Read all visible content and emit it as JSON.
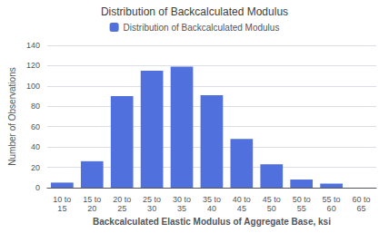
{
  "chart_data": {
    "type": "bar",
    "title": "Distribution of Backcalculated Modulus",
    "xlabel": "Backcalculated Elastic Modulus of Aggregate Base, ksi",
    "ylabel": "Number of Observations",
    "categories": [
      "10 to\n15",
      "15 to\n20",
      "20 to\n25",
      "25 to\n30",
      "30 to\n35",
      "35 to\n40",
      "40 to\n45",
      "45 to\n50",
      "50 to\n55",
      "55 to\n60",
      "60 to\n65"
    ],
    "series": [
      {
        "name": "Distribution of Backcalculated Modulus",
        "values": [
          5,
          26,
          90,
          115,
          119,
          91,
          48,
          23,
          8,
          4,
          0
        ]
      }
    ],
    "ylim": [
      0,
      140
    ],
    "yticks": [
      0,
      20,
      40,
      60,
      80,
      100,
      120,
      140
    ],
    "grid": true,
    "legend": "top"
  }
}
